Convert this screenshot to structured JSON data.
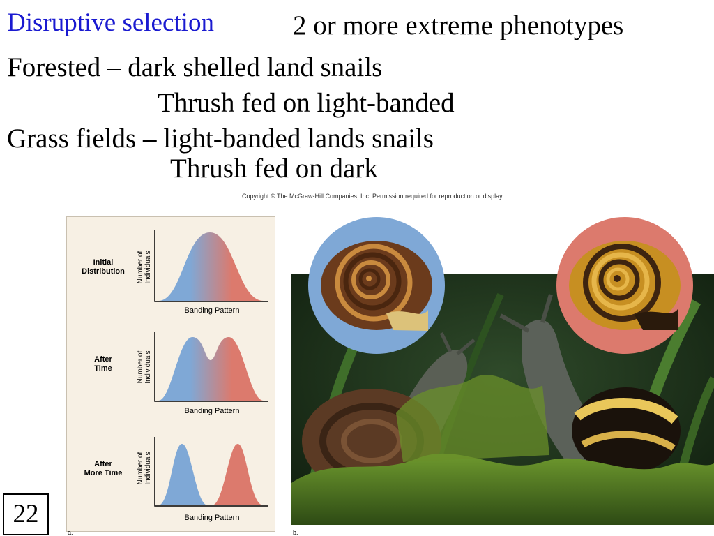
{
  "slide": {
    "title": "Disruptive selection",
    "subtitle": "2 or more extreme phenotypes",
    "lines": [
      "Forested – dark shelled land snails",
      "Thrush fed on light-banded",
      "Grass fields – light-banded lands snails",
      "Thrush fed on dark"
    ],
    "copyright": "Copyright © The McGraw-Hill Companies, Inc. Permission required for reproduction or display.",
    "slide_number": "22"
  },
  "figure_a": {
    "panel_label": "a.",
    "y_axis_label_line1": "Number of",
    "y_axis_label_line2": "Individuals",
    "x_axis_label": "Banding Pattern",
    "stages": [
      {
        "label_line1": "Initial",
        "label_line2": "Distribution"
      },
      {
        "label_line1": "After",
        "label_line2": "Time"
      },
      {
        "label_line1": "After",
        "label_line2": "More Time"
      }
    ]
  },
  "figure_b": {
    "panel_label": "b."
  },
  "colors": {
    "title": "#1a1ad0",
    "blue_phenotype": "#7fa8d6",
    "red_phenotype": "#dc7a6d",
    "panel_background": "#f7f0e4"
  }
}
